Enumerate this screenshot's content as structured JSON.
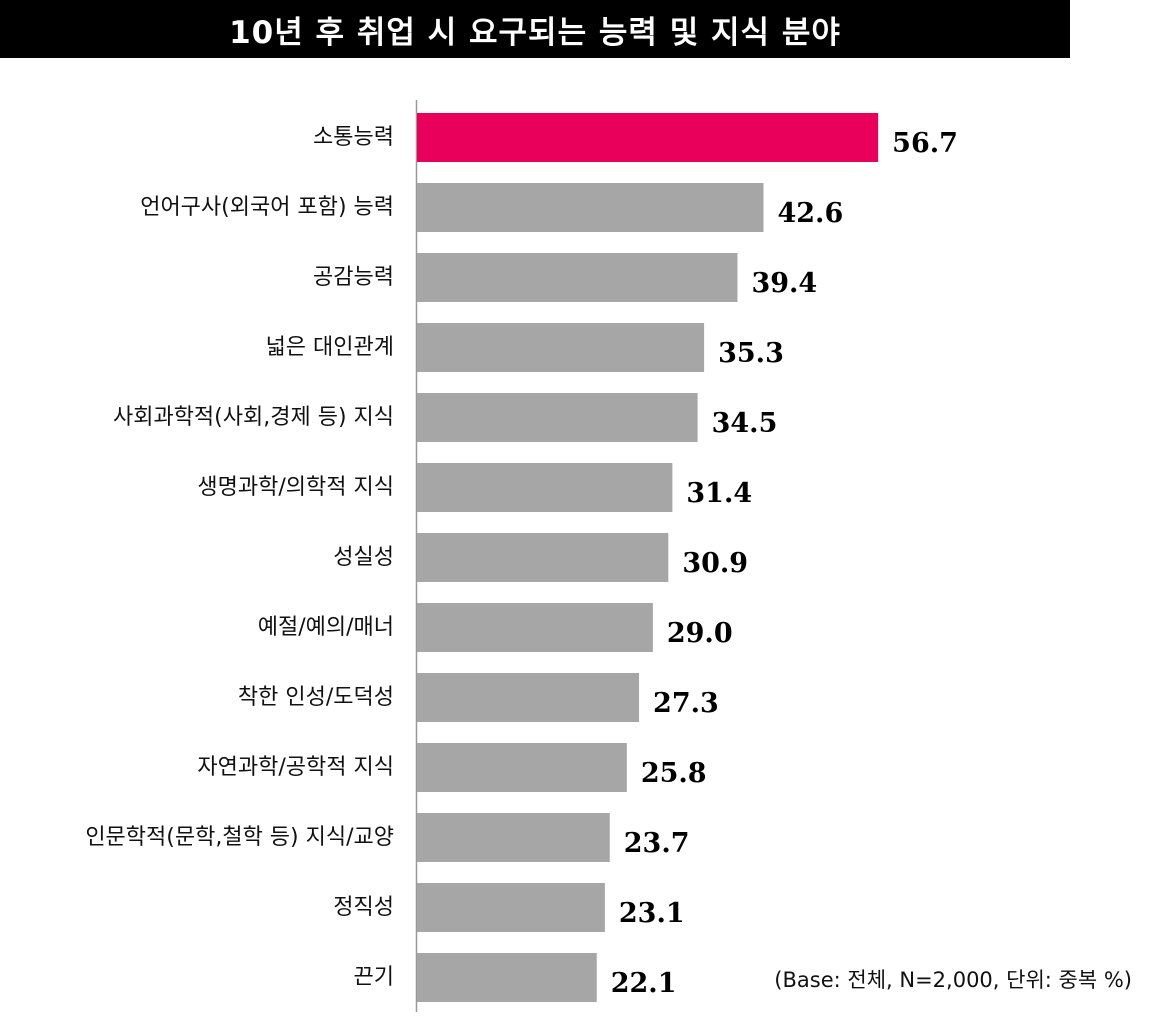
{
  "chart_data": {
    "type": "bar",
    "orientation": "horizontal",
    "title": "10년 후 취업 시 요구되는 능력 및 지식 분야",
    "note": "(Base: 전체, N=2,000, 단위: 중복 %)",
    "categories": [
      "소통능력",
      "언어구사(외국어 포함) 능력",
      "공감능력",
      "넓은 대인관계",
      "사회과학적(사회,경제 등) 지식",
      "생명과학/의학적 지식",
      "성실성",
      "예절/예의/매너",
      "착한 인성/도덕성",
      "자연과학/공학적 지식",
      "인문학적(문학,철학 등) 지식/교양",
      "정직성",
      "끈기"
    ],
    "values": [
      56.7,
      42.6,
      39.4,
      35.3,
      34.5,
      31.4,
      30.9,
      29.0,
      27.3,
      25.8,
      23.7,
      23.1,
      22.1
    ],
    "value_labels": [
      "56.7",
      "42.6",
      "39.4",
      "35.3",
      "34.5",
      "31.4",
      "30.9",
      "29.0",
      "27.3",
      "25.8",
      "23.7",
      "23.1",
      "22.1"
    ],
    "xlim": [
      0,
      60
    ],
    "grid": false,
    "legend": "none",
    "colors": {
      "highlight": "#E8005A",
      "default": "#A6A6A6",
      "axis": "#999999"
    },
    "highlight_index": 0
  }
}
